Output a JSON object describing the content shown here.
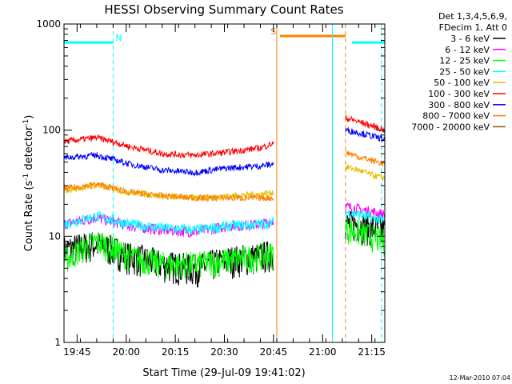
{
  "chart_data": {
    "type": "line",
    "title": "HESSI Observing Summary Count Rates",
    "xlabel": "Start Time (29-Jul-09 19:41:02)",
    "ylabel_main": "Count Rate (s",
    "ylabel_sup1": "-1",
    "ylabel_mid": " detector",
    "ylabel_sup2": "-1",
    "ylabel_end": ")",
    "x_unit": "minutes after 19:41:02",
    "xlim": [
      0,
      98
    ],
    "ylim": [
      1,
      1000
    ],
    "yscale": "log",
    "x_ticks": [
      {
        "label": "19:45",
        "x": 4
      },
      {
        "label": "20:00",
        "x": 19
      },
      {
        "label": "20:15",
        "x": 34
      },
      {
        "label": "20:30",
        "x": 49
      },
      {
        "label": "20:45",
        "x": 64
      },
      {
        "label": "21:00",
        "x": 79
      },
      {
        "label": "21:15",
        "x": 94
      }
    ],
    "y_ticks": [
      {
        "label": "1",
        "y": 1
      },
      {
        "label": "10",
        "y": 10
      },
      {
        "label": "100",
        "y": 100
      },
      {
        "label": "1000",
        "y": 1000
      }
    ],
    "legend_header": [
      "Det 1,3,4,5,6,9,",
      "FDecim 1, Att 0"
    ],
    "series": [
      {
        "name": "3 - 6 keV",
        "color": "#000000",
        "pre": [
          [
            0,
            7.5
          ],
          [
            10,
            8.5
          ],
          [
            20,
            6.5
          ],
          [
            30,
            5.5
          ],
          [
            40,
            5
          ],
          [
            50,
            6
          ],
          [
            60,
            6.5
          ],
          [
            64,
            7
          ]
        ],
        "post": [
          [
            86,
            13
          ],
          [
            90,
            13
          ],
          [
            94,
            12
          ],
          [
            98,
            11.5
          ]
        ]
      },
      {
        "name": "6 - 12 keV",
        "color": "#ff00ff",
        "pre": [
          [
            0,
            13
          ],
          [
            10,
            15
          ],
          [
            20,
            12.5
          ],
          [
            30,
            11.5
          ],
          [
            40,
            11
          ],
          [
            50,
            12.5
          ],
          [
            60,
            13
          ],
          [
            64,
            14
          ]
        ],
        "post": [
          [
            86,
            19
          ],
          [
            90,
            18
          ],
          [
            94,
            17
          ],
          [
            98,
            16
          ]
        ]
      },
      {
        "name": "12 - 25 keV",
        "color": "#00ff00",
        "pre": [
          [
            0,
            6
          ],
          [
            10,
            9
          ],
          [
            20,
            6.5
          ],
          [
            30,
            5.5
          ],
          [
            40,
            5.5
          ],
          [
            50,
            6
          ],
          [
            60,
            6.5
          ],
          [
            64,
            7
          ]
        ],
        "post": [
          [
            86,
            12
          ],
          [
            90,
            11
          ],
          [
            94,
            10
          ],
          [
            98,
            9
          ]
        ]
      },
      {
        "name": "25 - 50 keV",
        "color": "#00ffff",
        "pre": [
          [
            0,
            13
          ],
          [
            10,
            15.5
          ],
          [
            20,
            13
          ],
          [
            30,
            12
          ],
          [
            40,
            11.5
          ],
          [
            50,
            12.5
          ],
          [
            60,
            13
          ],
          [
            64,
            13.5
          ]
        ],
        "post": [
          [
            86,
            17
          ],
          [
            90,
            16
          ],
          [
            94,
            15
          ],
          [
            98,
            14
          ]
        ]
      },
      {
        "name": "50 - 100 keV",
        "color": "#e0c000",
        "pre": [
          [
            0,
            27
          ],
          [
            10,
            30
          ],
          [
            20,
            26
          ],
          [
            30,
            24
          ],
          [
            40,
            23
          ],
          [
            50,
            24
          ],
          [
            60,
            25
          ],
          [
            64,
            26
          ]
        ],
        "post": [
          [
            86,
            45
          ],
          [
            90,
            42
          ],
          [
            94,
            38
          ],
          [
            98,
            35
          ]
        ]
      },
      {
        "name": "100 - 300 keV",
        "color": "#ff0000",
        "pre": [
          [
            0,
            78
          ],
          [
            10,
            85
          ],
          [
            20,
            70
          ],
          [
            30,
            60
          ],
          [
            40,
            58
          ],
          [
            50,
            62
          ],
          [
            60,
            68
          ],
          [
            64,
            75
          ]
        ],
        "post": [
          [
            86,
            130
          ],
          [
            90,
            120
          ],
          [
            94,
            110
          ],
          [
            98,
            100
          ]
        ]
      },
      {
        "name": "300 - 800 keV",
        "color": "#0000ff",
        "pre": [
          [
            0,
            55
          ],
          [
            10,
            58
          ],
          [
            20,
            48
          ],
          [
            30,
            42
          ],
          [
            40,
            40
          ],
          [
            50,
            44
          ],
          [
            60,
            46
          ],
          [
            64,
            48
          ]
        ],
        "post": [
          [
            86,
            100
          ],
          [
            90,
            95
          ],
          [
            94,
            88
          ],
          [
            98,
            82
          ]
        ]
      },
      {
        "name": "800 - 7000 keV",
        "color": "#ff8000",
        "pre": [
          [
            0,
            28
          ],
          [
            10,
            31
          ],
          [
            20,
            26
          ],
          [
            30,
            24
          ],
          [
            40,
            23
          ],
          [
            50,
            23
          ],
          [
            60,
            23
          ],
          [
            64,
            23
          ]
        ],
        "post": [
          [
            86,
            62
          ],
          [
            90,
            56
          ],
          [
            94,
            52
          ],
          [
            98,
            48
          ]
        ]
      },
      {
        "name": "7000 - 20000 keV",
        "color": "#8b5a00",
        "pre": [],
        "post": []
      }
    ],
    "markers": [
      {
        "label": "N",
        "color": "#00ffff",
        "bar": [
          0,
          15
        ],
        "bar_y": 670,
        "lines": [
          [
            0,
            "solid"
          ],
          [
            15,
            "dash"
          ]
        ]
      },
      {
        "label": "S",
        "color": "#ff8000",
        "bar": [
          66,
          86
        ],
        "bar_y": 770,
        "lines": [
          [
            65,
            "solid"
          ],
          [
            86,
            "dash"
          ]
        ]
      },
      {
        "label": "",
        "color": "#00ffff",
        "bar": [
          88,
          98
        ],
        "bar_y": 670,
        "lines": [
          [
            82,
            "solid"
          ],
          [
            97,
            "dash"
          ]
        ]
      }
    ],
    "grid": false,
    "legend_position": "right"
  },
  "footer": {
    "timestamp": "12-Mar-2010 07:04"
  }
}
